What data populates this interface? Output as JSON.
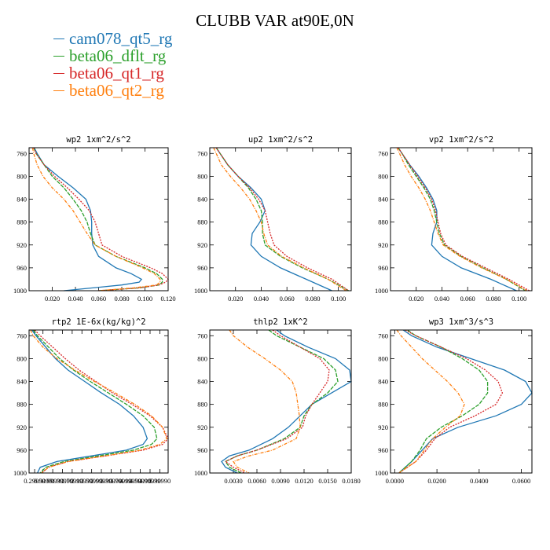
{
  "title": "CLUBB VAR at90E,0N",
  "colors": [
    "#1f77b4",
    "#2ca02c",
    "#d62728",
    "#ff7f0e"
  ],
  "legend": [
    "cam078_qt5_rg",
    "beta06_dflt_rg",
    "beta06_qt1_rg",
    "beta06_qt2_rg"
  ],
  "chart_data": [
    {
      "type": "line",
      "title": "wp2  1xm^2/s^2",
      "xlim": [
        0.0,
        0.12
      ],
      "ylim": [
        1000,
        750
      ],
      "xticks": [
        0.02,
        0.04,
        0.06,
        0.08,
        0.1,
        0.12
      ],
      "xtick_labels": [
        "0.020",
        "0.040",
        "0.060",
        "0.080",
        "0.100",
        "0.120"
      ],
      "yticks": [
        760,
        800,
        840,
        880,
        920,
        960,
        1000
      ],
      "y": [
        750,
        760,
        780,
        800,
        820,
        840,
        860,
        880,
        900,
        920,
        940,
        960,
        970,
        980,
        985,
        990,
        995,
        1000
      ],
      "series": [
        {
          "name": "cam078_qt5_rg",
          "x": [
            0.0045,
            0.007,
            0.013,
            0.025,
            0.038,
            0.049,
            0.053,
            0.054,
            0.054,
            0.055,
            0.06,
            0.075,
            0.088,
            0.097,
            0.095,
            0.08,
            0.055,
            0.03
          ]
        },
        {
          "name": "beta06_dflt_rg",
          "x": [
            0.004,
            0.006,
            0.013,
            0.02,
            0.03,
            0.038,
            0.045,
            0.05,
            0.053,
            0.057,
            0.075,
            0.1,
            0.11,
            0.115,
            0.115,
            0.112,
            0.095,
            0.06
          ]
        },
        {
          "name": "beta06_qt1_rg",
          "x": [
            0.004,
            0.006,
            0.013,
            0.022,
            0.033,
            0.043,
            0.052,
            0.057,
            0.06,
            0.063,
            0.08,
            0.105,
            0.115,
            0.12,
            0.118,
            0.112,
            0.095,
            0.06
          ]
        },
        {
          "name": "beta06_qt2_rg",
          "x": [
            0.003,
            0.004,
            0.007,
            0.012,
            0.02,
            0.03,
            0.038,
            0.044,
            0.05,
            0.057,
            0.075,
            0.098,
            0.108,
            0.113,
            0.113,
            0.11,
            0.09,
            0.06
          ]
        }
      ]
    },
    {
      "type": "line",
      "title": "up2  1xm^2/s^2",
      "xlim": [
        0.0,
        0.11
      ],
      "ylim": [
        1000,
        750
      ],
      "xticks": [
        0.02,
        0.04,
        0.06,
        0.08,
        0.1
      ],
      "xtick_labels": [
        "0.020",
        "0.040",
        "0.060",
        "0.080",
        "0.100"
      ],
      "yticks": [
        760,
        800,
        840,
        880,
        920,
        960,
        1000
      ],
      "y": [
        750,
        760,
        780,
        800,
        820,
        840,
        860,
        880,
        900,
        920,
        940,
        960,
        980,
        1000
      ],
      "series": [
        {
          "name": "cam078_qt5_rg",
          "x": [
            0.005,
            0.008,
            0.014,
            0.022,
            0.032,
            0.04,
            0.043,
            0.039,
            0.033,
            0.032,
            0.04,
            0.055,
            0.075,
            0.095
          ]
        },
        {
          "name": "beta06_dflt_rg",
          "x": [
            0.005,
            0.008,
            0.014,
            0.022,
            0.03,
            0.036,
            0.04,
            0.041,
            0.041,
            0.043,
            0.055,
            0.072,
            0.092,
            0.108
          ]
        },
        {
          "name": "beta06_qt1_rg",
          "x": [
            0.005,
            0.008,
            0.014,
            0.022,
            0.031,
            0.038,
            0.043,
            0.045,
            0.047,
            0.05,
            0.06,
            0.076,
            0.095,
            0.108
          ]
        },
        {
          "name": "beta06_qt2_rg",
          "x": [
            0.003,
            0.005,
            0.009,
            0.016,
            0.024,
            0.031,
            0.036,
            0.04,
            0.042,
            0.045,
            0.056,
            0.073,
            0.092,
            0.106
          ]
        }
      ]
    },
    {
      "type": "line",
      "title": "vp2  1xm^2/s^2",
      "xlim": [
        0.0,
        0.11
      ],
      "ylim": [
        1000,
        750
      ],
      "xticks": [
        0.02,
        0.04,
        0.06,
        0.08,
        0.1
      ],
      "xtick_labels": [
        "0.020",
        "0.040",
        "0.060",
        "0.080",
        "0.100"
      ],
      "yticks": [
        760,
        800,
        840,
        880,
        920,
        960,
        1000
      ],
      "y": [
        750,
        760,
        780,
        800,
        820,
        840,
        860,
        880,
        900,
        920,
        940,
        960,
        980,
        1000
      ],
      "series": [
        {
          "name": "cam078_qt5_rg",
          "x": [
            0.006,
            0.009,
            0.015,
            0.022,
            0.028,
            0.033,
            0.036,
            0.036,
            0.033,
            0.032,
            0.04,
            0.055,
            0.078,
            0.098
          ]
        },
        {
          "name": "beta06_dflt_rg",
          "x": [
            0.006,
            0.009,
            0.014,
            0.02,
            0.026,
            0.031,
            0.034,
            0.036,
            0.038,
            0.042,
            0.055,
            0.072,
            0.09,
            0.105
          ]
        },
        {
          "name": "beta06_qt1_rg",
          "x": [
            0.006,
            0.009,
            0.015,
            0.021,
            0.027,
            0.032,
            0.035,
            0.037,
            0.039,
            0.043,
            0.056,
            0.074,
            0.092,
            0.108
          ]
        },
        {
          "name": "beta06_qt2_rg",
          "x": [
            0.005,
            0.007,
            0.011,
            0.016,
            0.022,
            0.027,
            0.031,
            0.034,
            0.037,
            0.041,
            0.054,
            0.071,
            0.09,
            0.106
          ]
        }
      ]
    },
    {
      "type": "line",
      "title": "rtp2  1E-6x(kg/kg)^2",
      "xlim": [
        0.0,
        1.0
      ],
      "ylim": [
        1000,
        750
      ],
      "xticks": [
        0.04,
        0.1,
        0.17,
        0.24,
        0.31,
        0.38,
        0.45,
        0.52,
        0.59,
        0.66,
        0.73,
        0.8,
        0.87,
        0.94
      ],
      "xtick_labels": [
        "0.29990",
        "0.5999",
        "0.99990",
        "1.39990",
        "1.79990",
        "2.19990",
        "2.59990",
        "2.99990",
        "3.39990",
        "3.79990",
        "4.19990",
        "4.59990",
        "4.99990",
        "5.39990"
      ],
      "yticks": [
        760,
        800,
        840,
        880,
        920,
        960,
        1000
      ],
      "y": [
        750,
        760,
        780,
        800,
        820,
        840,
        860,
        880,
        900,
        920,
        940,
        950,
        960,
        970,
        980,
        990,
        1000
      ],
      "series": [
        {
          "name": "cam078_qt5_rg",
          "x": [
            0.02,
            0.05,
            0.12,
            0.19,
            0.28,
            0.4,
            0.52,
            0.65,
            0.75,
            0.82,
            0.85,
            0.82,
            0.7,
            0.45,
            0.2,
            0.08,
            0.06
          ]
        },
        {
          "name": "beta06_dflt_rg",
          "x": [
            0.03,
            0.06,
            0.14,
            0.22,
            0.32,
            0.44,
            0.57,
            0.7,
            0.82,
            0.9,
            0.92,
            0.88,
            0.75,
            0.5,
            0.25,
            0.12,
            0.08
          ]
        },
        {
          "name": "beta06_qt1_rg",
          "x": [
            0.04,
            0.08,
            0.17,
            0.26,
            0.36,
            0.48,
            0.6,
            0.74,
            0.87,
            0.96,
            1.0,
            0.96,
            0.82,
            0.55,
            0.28,
            0.14,
            0.09
          ]
        },
        {
          "name": "beta06_qt2_rg",
          "x": [
            0.01,
            0.03,
            0.1,
            0.2,
            0.33,
            0.47,
            0.62,
            0.76,
            0.88,
            0.96,
            0.99,
            0.94,
            0.8,
            0.55,
            0.28,
            0.14,
            0.09
          ]
        }
      ]
    },
    {
      "type": "line",
      "title": "thlp2  1xK^2",
      "xlim": [
        0.0,
        0.018
      ],
      "ylim": [
        1000,
        750
      ],
      "xticks": [
        0.003,
        0.006,
        0.009,
        0.012,
        0.015,
        0.018
      ],
      "xtick_labels": [
        "0.0030",
        "0.0060",
        "0.0090",
        "0.0120",
        "0.0150",
        "0.0180"
      ],
      "yticks": [
        760,
        800,
        840,
        880,
        920,
        960,
        1000
      ],
      "y": [
        750,
        760,
        780,
        800,
        820,
        840,
        860,
        880,
        900,
        920,
        940,
        960,
        970,
        980,
        990,
        1000
      ],
      "series": [
        {
          "name": "cam078_qt5_rg",
          "x": [
            0.0085,
            0.0095,
            0.0125,
            0.016,
            0.0178,
            0.018,
            0.0155,
            0.013,
            0.0115,
            0.01,
            0.008,
            0.005,
            0.0025,
            0.0015,
            0.002,
            0.0035
          ]
        },
        {
          "name": "beta06_dflt_rg",
          "x": [
            0.0075,
            0.0085,
            0.0115,
            0.0145,
            0.016,
            0.0163,
            0.015,
            0.013,
            0.012,
            0.0115,
            0.0095,
            0.006,
            0.0035,
            0.002,
            0.0025,
            0.004
          ]
        },
        {
          "name": "beta06_qt1_rg",
          "x": [
            0.008,
            0.009,
            0.0115,
            0.014,
            0.0152,
            0.015,
            0.014,
            0.013,
            0.0122,
            0.0118,
            0.0098,
            0.006,
            0.0035,
            0.002,
            0.003,
            0.0045
          ]
        },
        {
          "name": "beta06_qt2_rg",
          "x": [
            0.0025,
            0.003,
            0.0048,
            0.007,
            0.009,
            0.0105,
            0.011,
            0.0112,
            0.0114,
            0.0115,
            0.011,
            0.008,
            0.005,
            0.003,
            0.0035,
            0.005
          ]
        }
      ]
    },
    {
      "type": "line",
      "title": "wp3  1xm^3/s^3",
      "xlim": [
        -0.002,
        0.065
      ],
      "ylim": [
        1000,
        750
      ],
      "xticks": [
        0.0,
        0.02,
        0.04,
        0.06
      ],
      "xtick_labels": [
        "0.0000",
        "0.0200",
        "0.0400",
        "0.0600"
      ],
      "yticks": [
        760,
        800,
        840,
        880,
        920,
        960,
        1000
      ],
      "y": [
        750,
        760,
        780,
        800,
        820,
        840,
        860,
        880,
        900,
        920,
        940,
        960,
        980,
        1000
      ],
      "series": [
        {
          "name": "cam078_qt5_rg",
          "x": [
            0.004,
            0.008,
            0.02,
            0.036,
            0.052,
            0.062,
            0.065,
            0.06,
            0.048,
            0.03,
            0.018,
            0.013,
            0.008,
            0.002
          ]
        },
        {
          "name": "beta06_dflt_rg",
          "x": [
            0.006,
            0.01,
            0.022,
            0.032,
            0.04,
            0.044,
            0.044,
            0.04,
            0.032,
            0.022,
            0.015,
            0.012,
            0.008,
            0.002
          ]
        },
        {
          "name": "beta06_qt1_rg",
          "x": [
            0.005,
            0.01,
            0.022,
            0.034,
            0.043,
            0.049,
            0.051,
            0.048,
            0.038,
            0.026,
            0.019,
            0.015,
            0.01,
            0.002
          ]
        },
        {
          "name": "beta06_qt2_rg",
          "x": [
            0.001,
            0.003,
            0.008,
            0.013,
            0.019,
            0.025,
            0.03,
            0.033,
            0.031,
            0.024,
            0.018,
            0.014,
            0.01,
            0.002
          ]
        }
      ]
    }
  ]
}
